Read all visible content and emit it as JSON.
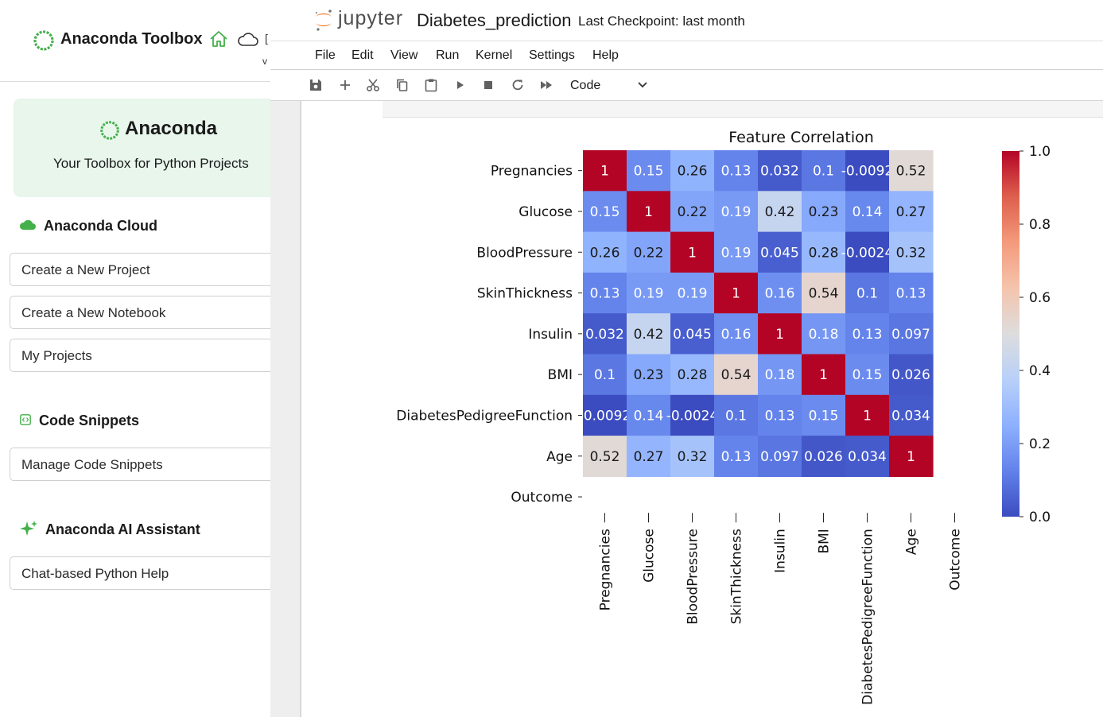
{
  "sidebar": {
    "title": "Anaconda Toolbox",
    "header_cut_text": "v",
    "card": {
      "title": "Anaconda",
      "subtitle": "Your Toolbox for Python Projects"
    },
    "sections": {
      "cloud": {
        "title": "Anaconda Cloud",
        "buttons": [
          "Create a New Project",
          "Create a New Notebook",
          "My Projects"
        ]
      },
      "snippets": {
        "title": "Code Snippets",
        "buttons": [
          "Manage Code Snippets"
        ]
      },
      "ai": {
        "title": "Anaconda AI Assistant",
        "buttons": [
          "Chat-based Python Help"
        ]
      }
    },
    "icons": {
      "logo": "anaconda-ring-icon",
      "home": "home-icon",
      "cloud": "cloud-icon"
    }
  },
  "jupyter": {
    "brand": "jupyter",
    "notebook_name": "Diabetes_prediction",
    "checkpoint": "Last Checkpoint: last month",
    "menu": [
      "File",
      "Edit",
      "View",
      "Run",
      "Kernel",
      "Settings",
      "Help"
    ],
    "toolbar_icons": [
      "save-icon",
      "add-icon",
      "cut-icon",
      "copy-icon",
      "paste-icon",
      "run-icon",
      "stop-icon",
      "restart-icon",
      "fast-forward-icon"
    ],
    "cell_type": "Code"
  },
  "colors": {
    "accent_green": "#43b049",
    "jupyter_orange": "#f37726",
    "cmap_low": "#3b4cc0",
    "cmap_mid": "#dddddd",
    "cmap_high": "#b40426"
  },
  "chart_data": {
    "type": "heatmap",
    "title": "Feature Correlation",
    "rows": [
      "Pregnancies",
      "Glucose",
      "BloodPressure",
      "SkinThickness",
      "Insulin",
      "BMI",
      "DiabetesPedigreeFunction",
      "Age",
      "Outcome"
    ],
    "cols": [
      "Pregnancies",
      "Glucose",
      "BloodPressure",
      "SkinThickness",
      "Insulin",
      "BMI",
      "DiabetesPedigreeFunction",
      "Age",
      "Outcome"
    ],
    "values": [
      [
        1,
        0.15,
        0.26,
        0.13,
        0.032,
        0.1,
        -0.0092,
        0.52,
        null
      ],
      [
        0.15,
        1,
        0.22,
        0.19,
        0.42,
        0.23,
        0.14,
        0.27,
        null
      ],
      [
        0.26,
        0.22,
        1,
        0.19,
        0.045,
        0.28,
        -0.0024,
        0.32,
        null
      ],
      [
        0.13,
        0.19,
        0.19,
        1,
        0.16,
        0.54,
        0.1,
        0.13,
        null
      ],
      [
        0.032,
        0.42,
        0.045,
        0.16,
        1,
        0.18,
        0.13,
        0.097,
        null
      ],
      [
        0.1,
        0.23,
        0.28,
        0.54,
        0.18,
        1,
        0.15,
        0.026,
        null
      ],
      [
        -0.0092,
        0.14,
        -0.0024,
        0.1,
        0.13,
        0.15,
        1,
        0.034,
        null
      ],
      [
        0.52,
        0.27,
        0.32,
        0.13,
        0.097,
        0.026,
        0.034,
        1,
        null
      ],
      [
        null,
        null,
        null,
        null,
        null,
        null,
        null,
        null,
        null
      ]
    ],
    "labels": [
      [
        "1",
        "0.15",
        "0.26",
        "0.13",
        "0.032",
        "0.1",
        "-0.0092",
        "0.52",
        ""
      ],
      [
        "0.15",
        "1",
        "0.22",
        "0.19",
        "0.42",
        "0.23",
        "0.14",
        "0.27",
        ""
      ],
      [
        "0.26",
        "0.22",
        "1",
        "0.19",
        "0.045",
        "0.28",
        "-0.0024",
        "0.32",
        ""
      ],
      [
        "0.13",
        "0.19",
        "0.19",
        "1",
        "0.16",
        "0.54",
        "0.1",
        "0.13",
        ""
      ],
      [
        "0.032",
        "0.42",
        "0.045",
        "0.16",
        "1",
        "0.18",
        "0.13",
        "0.097",
        ""
      ],
      [
        "0.1",
        "0.23",
        "0.28",
        "0.54",
        "0.18",
        "1",
        "0.15",
        "0.026",
        ""
      ],
      [
        "-0.0092",
        "0.14",
        "-0.0024",
        "0.1",
        "0.13",
        "0.15",
        "1",
        "0.034",
        ""
      ],
      [
        "0.52",
        "0.27",
        "0.32",
        "0.13",
        "0.097",
        "0.026",
        "0.034",
        "1",
        ""
      ],
      [
        "",
        "",
        "",
        "",
        "",
        "",
        "",
        "",
        ""
      ]
    ],
    "colorbar": {
      "range": [
        0,
        1
      ],
      "ticks": [
        0.0,
        0.2,
        0.4,
        0.6,
        0.8,
        1.0
      ],
      "tick_labels": [
        "0.0",
        "0.2",
        "0.4",
        "0.6",
        "0.8",
        "1.0"
      ]
    },
    "colormap": "coolwarm"
  }
}
